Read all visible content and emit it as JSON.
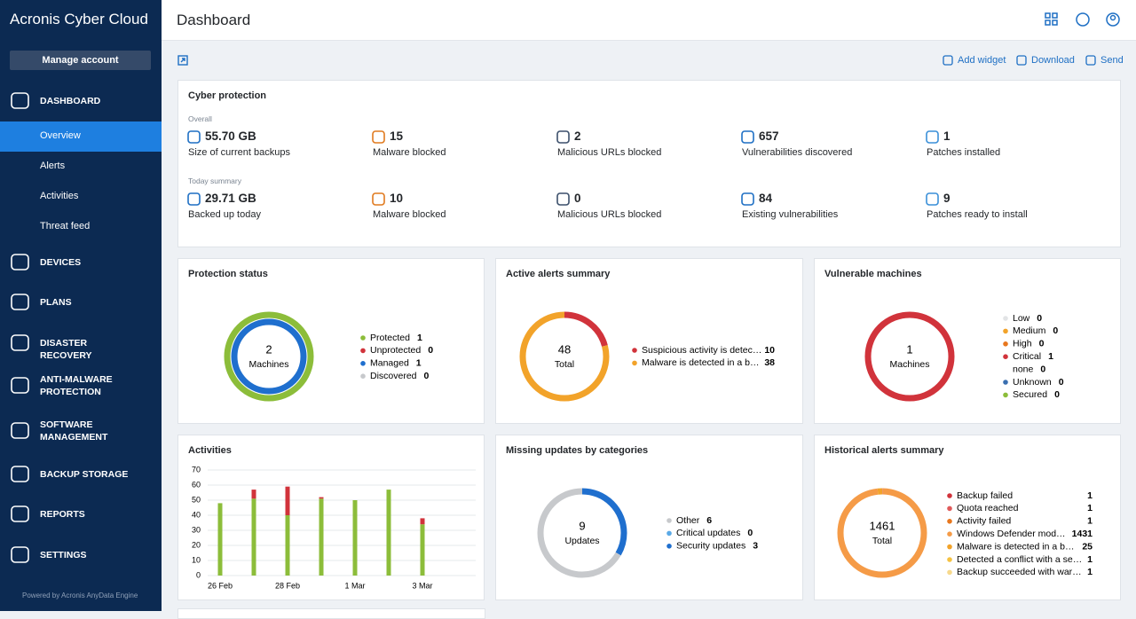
{
  "sidebar": {
    "brand": "Acronis Cyber Cloud",
    "manage_account": "Manage account",
    "menu": [
      {
        "label": "DASHBOARD",
        "children": [
          "Overview",
          "Alerts",
          "Activities",
          "Threat feed"
        ]
      },
      {
        "label": "DEVICES"
      },
      {
        "label": "PLANS"
      },
      {
        "label": "DISASTER RECOVERY"
      },
      {
        "label": "ANTI-MALWARE PROTECTION"
      },
      {
        "label": "SOFTWARE MANAGEMENT"
      },
      {
        "label": "BACKUP STORAGE"
      },
      {
        "label": "REPORTS"
      },
      {
        "label": "SETTINGS"
      }
    ],
    "footer": "Powered by Acronis AnyData Engine"
  },
  "header": {
    "title": "Dashboard"
  },
  "toolbar": {
    "actions": [
      "Add widget",
      "Download",
      "Send"
    ]
  },
  "cyber_protection": {
    "title": "Cyber protection",
    "sections": [
      {
        "label": "Overall",
        "items": [
          {
            "value": "55.70 GB",
            "label": "Size of current backups"
          },
          {
            "value": 15,
            "label": "Malware blocked"
          },
          {
            "value": 2,
            "label": "Malicious URLs blocked"
          },
          {
            "value": 657,
            "label": "Vulnerabilities discovered"
          },
          {
            "value": 1,
            "label": "Patches installed"
          }
        ]
      },
      {
        "label": "Today summary",
        "items": [
          {
            "value": "29.71 GB",
            "label": "Backed up today"
          },
          {
            "value": 10,
            "label": "Malware blocked"
          },
          {
            "value": 0,
            "label": "Malicious URLs blocked"
          },
          {
            "value": 84,
            "label": "Existing vulnerabilities"
          },
          {
            "value": 9,
            "label": "Patches ready to install"
          }
        ]
      }
    ]
  },
  "protection_status": {
    "title": "Protection status",
    "total": 2,
    "total_label": "Machines",
    "items": [
      {
        "name": "Protected",
        "value": 1,
        "color": "#8cbd3a"
      },
      {
        "name": "Unprotected",
        "value": 0,
        "color": "#d1333b"
      },
      {
        "name": "Managed",
        "value": 1,
        "color": "#1f6fce"
      },
      {
        "name": "Discovered",
        "value": 0,
        "color": "#c7c9cc"
      }
    ]
  },
  "active_alerts": {
    "title": "Active alerts summary",
    "total": 48,
    "total_label": "Total",
    "items": [
      {
        "name": "Suspicious activity is detec…",
        "value": 10,
        "color": "#d1333b"
      },
      {
        "name": "Malware is detected in a b…",
        "value": 38,
        "color": "#f2a32a"
      }
    ]
  },
  "vulnerable_machines": {
    "title": "Vulnerable machines",
    "total": 1,
    "total_label": "Machines",
    "items": [
      {
        "name": "Low",
        "value": 0,
        "color": "#e2e4e6"
      },
      {
        "name": "Medium",
        "value": 0,
        "color": "#f2a32a"
      },
      {
        "name": "High",
        "value": 0,
        "color": "#e8771e"
      },
      {
        "name": "Critical",
        "value": 1,
        "color": "#d1333b"
      },
      {
        "name": "none",
        "value": 0
      },
      {
        "name": "Unknown",
        "value": 0,
        "color": "#3a6fb0"
      },
      {
        "name": "Secured",
        "value": 0,
        "color": "#8cbd3a"
      }
    ]
  },
  "activities": {
    "title": "Activities",
    "categories": [
      "26 Feb",
      null,
      "28 Feb",
      null,
      "1 Mar",
      null,
      "3 Mar"
    ],
    "series": [
      {
        "color": "#8cbd3a",
        "values": [
          48,
          51,
          40,
          51,
          50,
          57,
          34
        ]
      },
      {
        "color": "#d1333b",
        "values": [
          0,
          6,
          19,
          1,
          0,
          0,
          4
        ]
      }
    ],
    "ylim": [
      0,
      70
    ],
    "yticks": [
      0,
      10,
      20,
      30,
      40,
      50,
      60,
      70
    ],
    "grid": true
  },
  "missing_updates": {
    "title": "Missing updates by categories",
    "total": 9,
    "total_label": "Updates",
    "items": [
      {
        "name": "Other",
        "value": 6,
        "color": "#c7c9cc"
      },
      {
        "name": "Critical updates",
        "value": 0,
        "color": "#5aa9e6"
      },
      {
        "name": "Security updates",
        "value": 3,
        "color": "#1f6fce"
      }
    ]
  },
  "historical_alerts": {
    "title": "Historical alerts summary",
    "total": 1461,
    "total_label": "Total",
    "items": [
      {
        "name": "Backup failed",
        "value": 1,
        "color": "#d1333b"
      },
      {
        "name": "Quota reached",
        "value": 1,
        "color": "#e05a5a"
      },
      {
        "name": "Activity failed",
        "value": 1,
        "color": "#e8771e"
      },
      {
        "name": "Windows Defender mod…",
        "value": 1431,
        "color": "#f59b47"
      },
      {
        "name": "Malware is detected in a b…",
        "value": 25,
        "color": "#f2a32a"
      },
      {
        "name": "Detected a conflict with a se…",
        "value": 1,
        "color": "#f5c242"
      },
      {
        "name": "Backup succeeded with war…",
        "value": 1,
        "color": "#f7d98c"
      }
    ]
  }
}
